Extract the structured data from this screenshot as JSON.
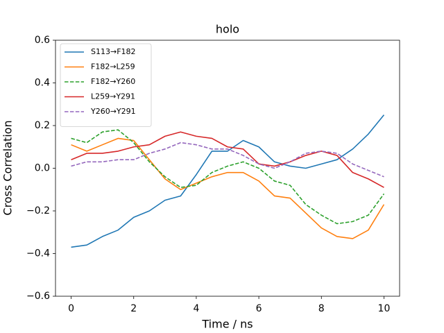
{
  "chart_data": {
    "type": "line",
    "title": "holo",
    "x_label": "Time / ns",
    "y_label": "Cross Correlation",
    "x": [
      0,
      0.5,
      1,
      1.5,
      2,
      2.5,
      3,
      3.5,
      4,
      4.5,
      5,
      5.5,
      6,
      6.5,
      7,
      7.5,
      8,
      8.5,
      9,
      9.5,
      10
    ],
    "series": [
      {
        "name": "S113→F182",
        "color": "#1f77b4",
        "line_style": "solid",
        "values": [
          -0.37,
          -0.36,
          -0.32,
          -0.29,
          -0.23,
          -0.2,
          -0.15,
          -0.13,
          -0.03,
          0.08,
          0.08,
          0.13,
          0.1,
          0.03,
          0.01,
          0.0,
          0.02,
          0.04,
          0.09,
          0.16,
          0.25
        ]
      },
      {
        "name": "F182→L259",
        "color": "#ff7f0e",
        "line_style": "solid",
        "values": [
          0.11,
          0.08,
          0.11,
          0.14,
          0.13,
          0.04,
          -0.05,
          -0.1,
          -0.07,
          -0.04,
          -0.02,
          -0.02,
          -0.06,
          -0.13,
          -0.14,
          -0.21,
          -0.28,
          -0.32,
          -0.33,
          -0.29,
          -0.17
        ]
      },
      {
        "name": "F182→Y260",
        "color": "#2ca02c",
        "line_style": "dashed",
        "values": [
          0.14,
          0.12,
          0.17,
          0.18,
          0.12,
          0.03,
          -0.04,
          -0.09,
          -0.08,
          -0.02,
          0.01,
          0.03,
          0.0,
          -0.06,
          -0.08,
          -0.17,
          -0.22,
          -0.26,
          -0.25,
          -0.22,
          -0.12
        ]
      },
      {
        "name": "L259→Y291",
        "color": "#d62728",
        "line_style": "solid",
        "values": [
          0.04,
          0.07,
          0.07,
          0.08,
          0.1,
          0.11,
          0.15,
          0.17,
          0.15,
          0.14,
          0.1,
          0.09,
          0.02,
          0.01,
          0.03,
          0.06,
          0.08,
          0.06,
          -0.02,
          -0.05,
          -0.09
        ]
      },
      {
        "name": "Y260→Y291",
        "color": "#9467bd",
        "line_style": "dashed",
        "values": [
          0.01,
          0.03,
          0.03,
          0.04,
          0.04,
          0.07,
          0.09,
          0.12,
          0.11,
          0.09,
          0.09,
          0.06,
          0.02,
          0.0,
          0.03,
          0.07,
          0.08,
          0.07,
          0.02,
          -0.01,
          -0.04
        ]
      }
    ],
    "xlim": [
      -0.5,
      10.5
    ],
    "xticks": [
      0,
      2,
      4,
      6,
      8,
      10
    ],
    "ylim": [
      -0.6,
      0.6
    ],
    "yticks": [
      {
        "value": -0.6,
        "label": "−0.6"
      },
      {
        "value": -0.4,
        "label": "−0.4"
      },
      {
        "value": -0.2,
        "label": "−0.2"
      },
      {
        "value": 0,
        "label": "0.0"
      },
      0.2,
      0.4,
      0.6
    ],
    "legend_position": "upper-left",
    "grid": false
  }
}
